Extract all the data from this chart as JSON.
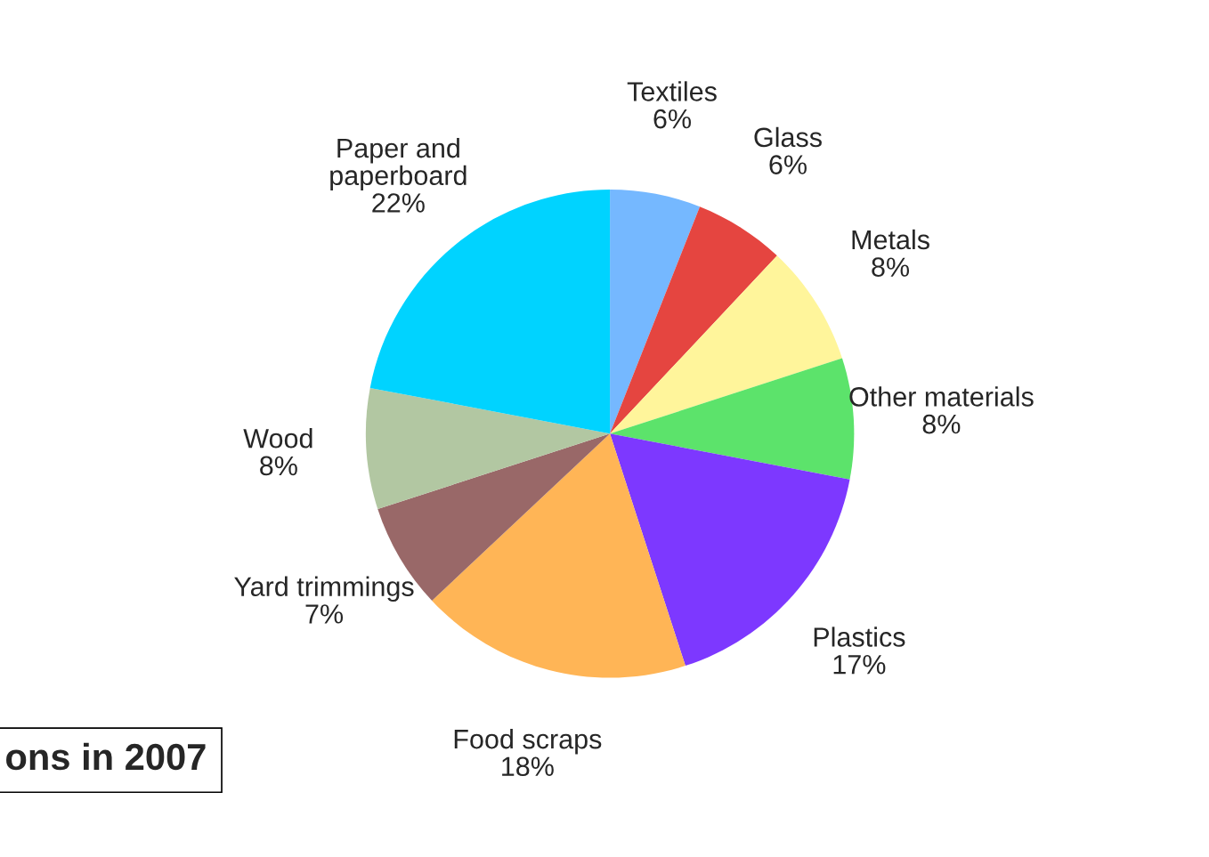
{
  "chart_data": {
    "type": "pie",
    "categories": [
      "Textiles",
      "Glass",
      "Metals",
      "Other materials",
      "Plastics",
      "Food scraps",
      "Yard trimmings",
      "Wood",
      "Paper and\npaperboard"
    ],
    "values": [
      6,
      6,
      8,
      8,
      17,
      18,
      7,
      8,
      22
    ],
    "value_labels": [
      "6%",
      "6%",
      "8%",
      "8%",
      "17%",
      "18%",
      "7%",
      "8%",
      "22%"
    ],
    "colors": [
      "#75b8ff",
      "#e54540",
      "#fff59b",
      "#5ce36b",
      "#7d38ff",
      "#ffb556",
      "#996868",
      "#b2c7a2",
      "#00d3ff"
    ],
    "annotations": [
      "ons in 2007"
    ]
  }
}
